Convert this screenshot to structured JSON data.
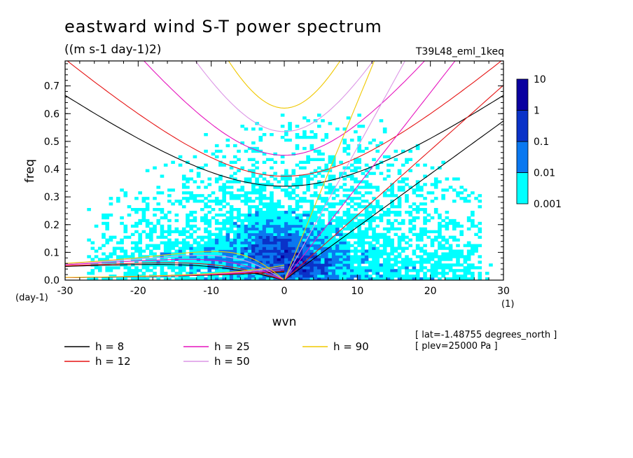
{
  "chart_data": {
    "type": "heatmap",
    "title": "eastward wind S-T power spectrum",
    "subtitle": "((m s-1 day-1)2)",
    "run_label": "T39L48_eml_1keq",
    "xlabel": "wvn",
    "ylabel": "freq",
    "x_unit": "(1)",
    "y_unit": "(day-1)",
    "xlim": [
      -30,
      30
    ],
    "ylim": [
      0,
      0.79
    ],
    "x_ticks": [
      -30,
      -20,
      -10,
      0,
      10,
      20,
      30
    ],
    "y_ticks": [
      0.0,
      0.1,
      0.2,
      0.3,
      0.4,
      0.5,
      0.6,
      0.7
    ],
    "x_tick_labels": [
      "-30",
      "-20",
      "-10",
      "0",
      "10",
      "20",
      "30"
    ],
    "y_tick_labels": [
      "0.0",
      "0.1",
      "0.2",
      "0.3",
      "0.4",
      "0.5",
      "0.6",
      "0.7"
    ],
    "colorbar": {
      "levels": [
        "0.001",
        "0.01",
        "0.1",
        "1",
        "10"
      ],
      "colors": [
        "#00ffff",
        "#0a78f0",
        "#0a32c8",
        "#0a00a0",
        "#5a14b4"
      ]
    },
    "dispersion_curves": [
      {
        "h": 8,
        "label": "h =  8",
        "color": "#000000"
      },
      {
        "h": 12,
        "label": "h = 12",
        "color": "#e61414"
      },
      {
        "h": 25,
        "label": "h = 25",
        "color": "#e614be"
      },
      {
        "h": 50,
        "label": "h = 50",
        "color": "#dc96e6"
      },
      {
        "h": 90,
        "label": "h = 90",
        "color": "#f0c800"
      }
    ],
    "annotations": [
      "[ lat=-1.48755 degrees_north ]",
      "[ plev=25000 Pa ]"
    ]
  }
}
